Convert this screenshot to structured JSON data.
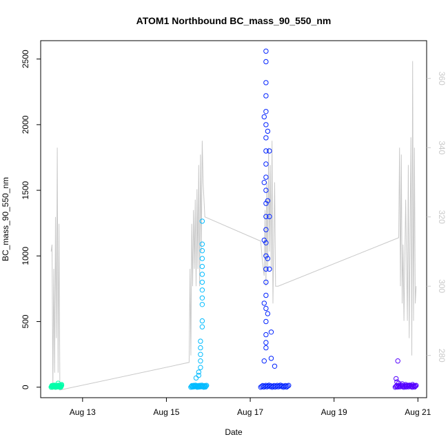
{
  "chart_data": {
    "type": "scatter",
    "title": "ATOM1 Northbound BC_mass_90_550_nm",
    "xlabel": "Date",
    "ylabel": "BC_mass_90_550_nm",
    "xlim": [
      "2019-08-12 00:00",
      "2019-08-21 05:00"
    ],
    "ylim": [
      -80,
      2640
    ],
    "x_ticks": [
      {
        "label": "Aug 13",
        "date": "2019-08-13"
      },
      {
        "label": "Aug 15",
        "date": "2019-08-15"
      },
      {
        "label": "Aug 17",
        "date": "2019-08-17"
      },
      {
        "label": "Aug 19",
        "date": "2019-08-19"
      },
      {
        "label": "Aug 21",
        "date": "2019-08-21"
      }
    ],
    "y_ticks": [
      0,
      500,
      1000,
      1500,
      2000,
      2500
    ],
    "y2_ticks": [
      280,
      300,
      320,
      340,
      360
    ],
    "y2lim": [
      267.8,
      370.9
    ],
    "grid": false,
    "colors": {
      "cluster1": "#00ffaa",
      "cluster2": "#00bbff",
      "cluster3": "#0022ff",
      "cluster4": "#5500ff",
      "secondary_line": "#c8c8c8",
      "axis": "#000000"
    },
    "clusters": [
      {
        "color": "#00ffaa",
        "x_range": [
          "2019-08-12 06:00",
          "2019-08-12 12:00"
        ],
        "points": [
          {
            "x": "2019-08-12 07:00",
            "y": 8
          },
          {
            "x": "2019-08-12 08:00",
            "y": 2
          },
          {
            "x": "2019-08-12 09:00",
            "y": 12
          },
          {
            "x": "2019-08-12 10:00",
            "y": 30
          },
          {
            "x": "2019-08-12 11:00",
            "y": 5
          },
          {
            "x": "2019-08-12 12:00",
            "y": 20
          }
        ]
      },
      {
        "color": "#00bbff",
        "x_range": [
          "2019-08-15 14:00",
          "2019-08-15 23:00"
        ],
        "points": [
          {
            "x": "2019-08-15 20:30",
            "y": 1265
          },
          {
            "x": "2019-08-15 20:30",
            "y": 1090
          },
          {
            "x": "2019-08-15 20:30",
            "y": 1040
          },
          {
            "x": "2019-08-15 20:30",
            "y": 980
          },
          {
            "x": "2019-08-15 20:30",
            "y": 920
          },
          {
            "x": "2019-08-15 20:30",
            "y": 860
          },
          {
            "x": "2019-08-15 20:30",
            "y": 800
          },
          {
            "x": "2019-08-15 20:30",
            "y": 740
          },
          {
            "x": "2019-08-15 20:30",
            "y": 680
          },
          {
            "x": "2019-08-15 20:30",
            "y": 630
          },
          {
            "x": "2019-08-15 20:30",
            "y": 505
          },
          {
            "x": "2019-08-15 20:30",
            "y": 460
          },
          {
            "x": "2019-08-15 19:30",
            "y": 350
          },
          {
            "x": "2019-08-15 19:30",
            "y": 300
          },
          {
            "x": "2019-08-15 19:30",
            "y": 250
          },
          {
            "x": "2019-08-15 19:30",
            "y": 200
          },
          {
            "x": "2019-08-15 19:30",
            "y": 150
          },
          {
            "x": "2019-08-15 18:30",
            "y": 115
          },
          {
            "x": "2019-08-15 18:30",
            "y": 90
          },
          {
            "x": "2019-08-15 17:00",
            "y": 70
          }
        ]
      },
      {
        "color": "#0022ff",
        "x_range": [
          "2019-08-17 06:00",
          "2019-08-17 22:00"
        ],
        "points": [
          {
            "x": "2019-08-17 09:00",
            "y": 2560
          },
          {
            "x": "2019-08-17 09:00",
            "y": 2480
          },
          {
            "x": "2019-08-17 09:00",
            "y": 2320
          },
          {
            "x": "2019-08-17 09:00",
            "y": 2220
          },
          {
            "x": "2019-08-17 09:00",
            "y": 2100
          },
          {
            "x": "2019-08-17 09:00",
            "y": 2000
          },
          {
            "x": "2019-08-17 09:00",
            "y": 1900
          },
          {
            "x": "2019-08-17 09:00",
            "y": 1800
          },
          {
            "x": "2019-08-17 09:00",
            "y": 1700
          },
          {
            "x": "2019-08-17 09:00",
            "y": 1600
          },
          {
            "x": "2019-08-17 09:00",
            "y": 1500
          },
          {
            "x": "2019-08-17 09:00",
            "y": 1400
          },
          {
            "x": "2019-08-17 09:00",
            "y": 1300
          },
          {
            "x": "2019-08-17 09:00",
            "y": 1200
          },
          {
            "x": "2019-08-17 09:00",
            "y": 1100
          },
          {
            "x": "2019-08-17 09:00",
            "y": 1000
          },
          {
            "x": "2019-08-17 09:00",
            "y": 900
          },
          {
            "x": "2019-08-17 09:00",
            "y": 800
          },
          {
            "x": "2019-08-17 09:00",
            "y": 700
          },
          {
            "x": "2019-08-17 09:00",
            "y": 600
          },
          {
            "x": "2019-08-17 09:00",
            "y": 500
          },
          {
            "x": "2019-08-17 09:00",
            "y": 400
          },
          {
            "x": "2019-08-17 09:00",
            "y": 340
          },
          {
            "x": "2019-08-17 09:00",
            "y": 300
          },
          {
            "x": "2019-08-17 08:00",
            "y": 2060
          },
          {
            "x": "2019-08-17 10:00",
            "y": 1950
          },
          {
            "x": "2019-08-17 08:00",
            "y": 1560
          },
          {
            "x": "2019-08-17 10:00",
            "y": 1420
          },
          {
            "x": "2019-08-17 08:00",
            "y": 1120
          },
          {
            "x": "2019-08-17 10:00",
            "y": 980
          },
          {
            "x": "2019-08-17 08:00",
            "y": 640
          },
          {
            "x": "2019-08-17 10:00",
            "y": 560
          },
          {
            "x": "2019-08-17 11:00",
            "y": 1800
          },
          {
            "x": "2019-08-17 11:00",
            "y": 1300
          },
          {
            "x": "2019-08-17 11:00",
            "y": 900
          },
          {
            "x": "2019-08-17 12:00",
            "y": 420
          },
          {
            "x": "2019-08-17 12:00",
            "y": 220
          },
          {
            "x": "2019-08-17 14:00",
            "y": 160
          },
          {
            "x": "2019-08-17 08:00",
            "y": 200
          }
        ]
      },
      {
        "color": "#5500ff",
        "x_range": [
          "2019-08-20 11:00",
          "2019-08-20 23:00"
        ],
        "points": [
          {
            "x": "2019-08-20 12:30",
            "y": 200
          },
          {
            "x": "2019-08-20 11:30",
            "y": 65
          },
          {
            "x": "2019-08-20 12:00",
            "y": 40
          },
          {
            "x": "2019-08-20 13:00",
            "y": 30
          },
          {
            "x": "2019-08-20 15:00",
            "y": 25
          },
          {
            "x": "2019-08-20 17:00",
            "y": 20
          },
          {
            "x": "2019-08-20 19:00",
            "y": 15
          },
          {
            "x": "2019-08-20 21:00",
            "y": 20
          },
          {
            "x": "2019-08-20 22:30",
            "y": 10
          }
        ]
      }
    ],
    "secondary_line": [
      {
        "x": "2019-08-12 06:00",
        "y2": 310
      },
      {
        "x": "2019-08-12 06:30",
        "y2": 312
      },
      {
        "x": "2019-08-12 07:00",
        "y2": 270
      },
      {
        "x": "2019-08-12 07:30",
        "y2": 305
      },
      {
        "x": "2019-08-12 08:00",
        "y2": 275
      },
      {
        "x": "2019-08-12 08:30",
        "y2": 320
      },
      {
        "x": "2019-08-12 09:00",
        "y2": 285
      },
      {
        "x": "2019-08-12 09:30",
        "y2": 340
      },
      {
        "x": "2019-08-12 10:00",
        "y2": 275
      },
      {
        "x": "2019-08-12 10:30",
        "y2": 318
      },
      {
        "x": "2019-08-12 11:00",
        "y2": 270
      },
      {
        "x": "2019-08-15 13:00",
        "y2": 278
      },
      {
        "x": "2019-08-15 13:30",
        "y2": 305
      },
      {
        "x": "2019-08-15 14:00",
        "y2": 280
      },
      {
        "x": "2019-08-15 14:30",
        "y2": 318
      },
      {
        "x": "2019-08-15 15:00",
        "y2": 300
      },
      {
        "x": "2019-08-15 15:30",
        "y2": 322
      },
      {
        "x": "2019-08-15 16:00",
        "y2": 305
      },
      {
        "x": "2019-08-15 16:30",
        "y2": 325
      },
      {
        "x": "2019-08-15 17:00",
        "y2": 300
      },
      {
        "x": "2019-08-15 17:30",
        "y2": 328
      },
      {
        "x": "2019-08-15 18:00",
        "y2": 305
      },
      {
        "x": "2019-08-15 18:30",
        "y2": 335
      },
      {
        "x": "2019-08-15 19:00",
        "y2": 300
      },
      {
        "x": "2019-08-15 19:30",
        "y2": 338
      },
      {
        "x": "2019-08-15 20:00",
        "y2": 310
      },
      {
        "x": "2019-08-15 20:30",
        "y2": 342
      },
      {
        "x": "2019-08-15 21:00",
        "y2": 330
      },
      {
        "x": "2019-08-15 22:00",
        "y2": 320
      },
      {
        "x": "2019-08-17 06:00",
        "y2": 313
      },
      {
        "x": "2019-08-17 07:00",
        "y2": 307
      },
      {
        "x": "2019-08-17 08:00",
        "y2": 303
      },
      {
        "x": "2019-08-17 08:30",
        "y2": 322
      },
      {
        "x": "2019-08-17 09:00",
        "y2": 300
      },
      {
        "x": "2019-08-17 09:30",
        "y2": 330
      },
      {
        "x": "2019-08-17 10:00",
        "y2": 305
      },
      {
        "x": "2019-08-17 10:30",
        "y2": 340
      },
      {
        "x": "2019-08-17 11:00",
        "y2": 310
      },
      {
        "x": "2019-08-17 11:30",
        "y2": 335
      },
      {
        "x": "2019-08-17 12:00",
        "y2": 305
      },
      {
        "x": "2019-08-17 12:30",
        "y2": 342
      },
      {
        "x": "2019-08-17 13:00",
        "y2": 295
      },
      {
        "x": "2019-08-17 14:00",
        "y2": 330
      },
      {
        "x": "2019-08-17 14:30",
        "y2": 300
      },
      {
        "x": "2019-08-17 16:00",
        "y2": 300
      },
      {
        "x": "2019-08-20 13:00",
        "y2": 314
      },
      {
        "x": "2019-08-20 13:30",
        "y2": 340
      },
      {
        "x": "2019-08-20 14:00",
        "y2": 300
      },
      {
        "x": "2019-08-20 14:30",
        "y2": 338
      },
      {
        "x": "2019-08-20 15:00",
        "y2": 295
      },
      {
        "x": "2019-08-20 15:30",
        "y2": 312
      },
      {
        "x": "2019-08-20 16:00",
        "y2": 290
      },
      {
        "x": "2019-08-20 17:00",
        "y2": 325
      },
      {
        "x": "2019-08-20 18:00",
        "y2": 290
      },
      {
        "x": "2019-08-20 18:30",
        "y2": 335
      },
      {
        "x": "2019-08-20 19:00",
        "y2": 285
      },
      {
        "x": "2019-08-20 20:00",
        "y2": 343
      },
      {
        "x": "2019-08-20 20:30",
        "y2": 280
      },
      {
        "x": "2019-08-20 21:00",
        "y2": 365
      },
      {
        "x": "2019-08-20 21:30",
        "y2": 290
      },
      {
        "x": "2019-08-20 22:00",
        "y2": 340
      },
      {
        "x": "2019-08-20 22:30",
        "y2": 295
      },
      {
        "x": "2019-08-20 23:00",
        "y2": 300
      }
    ]
  }
}
